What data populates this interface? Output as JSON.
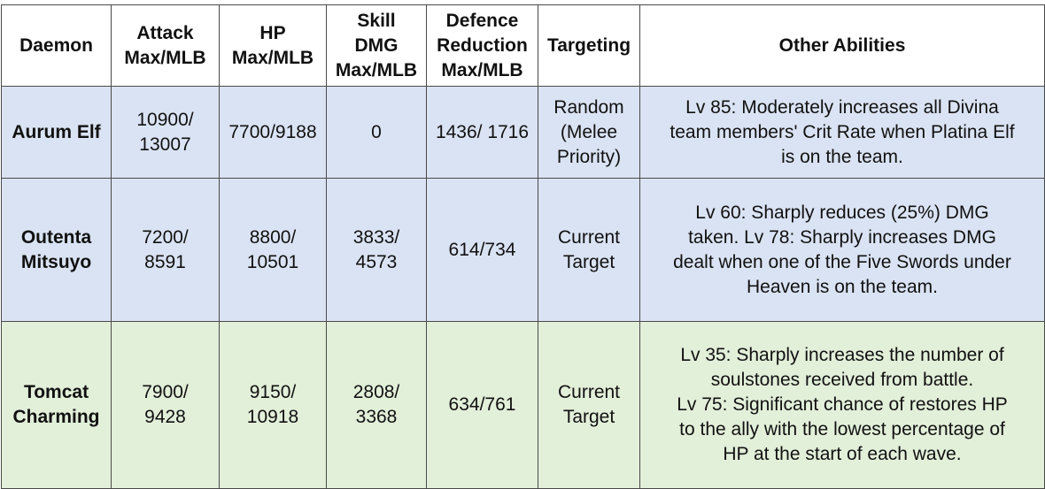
{
  "columns": [
    "Daemon",
    "Attack\nMax/MLB",
    "HP\nMax/MLB",
    "Skill\nDMG\nMax/MLB",
    "Defence\nReduction\nMax/MLB",
    "Targeting",
    "Other Abilities"
  ],
  "rows": [
    {
      "daemon": "Aurum Elf",
      "attack": "10900/\n13007",
      "hp": "7700/9188",
      "skill_dmg": "0",
      "defence_reduction": "1436/ 1716",
      "targeting": "Random\n(Melee\nPriority)",
      "abilities": "Lv 85: Moderately increases all Divina\nteam members' Crit Rate when Platina Elf\nis on the team.",
      "color": "#dae3f3"
    },
    {
      "daemon": "Outenta\nMitsuyo",
      "attack": "7200/\n8591",
      "hp": "8800/\n10501",
      "skill_dmg": "3833/\n4573",
      "defence_reduction": "614/734",
      "targeting": "Current\nTarget",
      "abilities": "Lv 60: Sharply reduces (25%) DMG\ntaken. Lv 78: Sharply increases DMG\ndealt when one of the Five Swords under\nHeaven is on the team.",
      "color": "#dae3f3"
    },
    {
      "daemon": "Tomcat\nCharming",
      "attack": "7900/\n9428",
      "hp": "9150/\n10918",
      "skill_dmg": "2808/\n3368",
      "defence_reduction": "634/761",
      "targeting": "Current\nTarget",
      "abilities": "Lv 35: Sharply increases the number of\nsoulstones received  from battle.\nLv 75: Significant chance of restores HP\nto the ally with the lowest percentage of\nHP at the start of each wave.",
      "color": "#e2efd9"
    }
  ]
}
